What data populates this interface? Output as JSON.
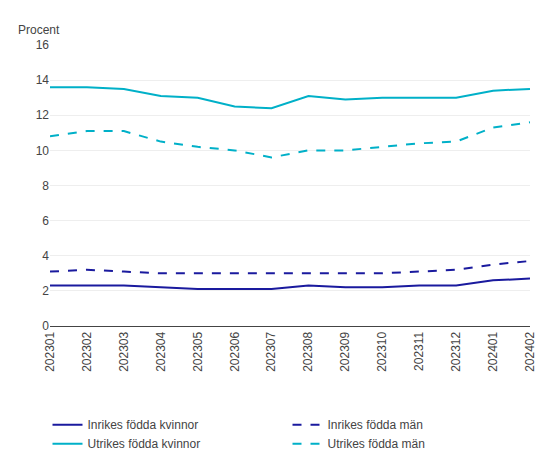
{
  "chart_data": {
    "type": "line",
    "annotations": [
      "Procent"
    ],
    "categories": [
      "202301",
      "202302",
      "202303",
      "202304",
      "202305",
      "202306",
      "202307",
      "202308",
      "202309",
      "202310",
      "202311",
      "202312",
      "202401",
      "202402"
    ],
    "series": [
      {
        "name": "Inrikes födda kvinnor",
        "color": "#1a1a9e",
        "line_style": "solid",
        "values": [
          2.3,
          2.3,
          2.3,
          2.2,
          2.1,
          2.1,
          2.1,
          2.3,
          2.2,
          2.2,
          2.3,
          2.3,
          2.6,
          2.7
        ]
      },
      {
        "name": "Inrikes födda män",
        "color": "#1a1a9e",
        "line_style": "dashed",
        "values": [
          3.1,
          3.2,
          3.1,
          3.0,
          3.0,
          3.0,
          3.0,
          3.0,
          3.0,
          3.0,
          3.1,
          3.2,
          3.5,
          3.7
        ]
      },
      {
        "name": "Utrikes födda kvinnor",
        "color": "#00b0c8",
        "line_style": "solid",
        "values": [
          13.6,
          13.6,
          13.5,
          13.1,
          13.0,
          12.5,
          12.4,
          13.1,
          12.9,
          13.0,
          13.0,
          13.0,
          13.4,
          13.5
        ]
      },
      {
        "name": "Utrikes födda män",
        "color": "#00b0c8",
        "line_style": "dashed",
        "values": [
          10.8,
          11.1,
          11.1,
          10.5,
          10.2,
          10.0,
          9.6,
          10.0,
          10.0,
          10.2,
          10.4,
          10.5,
          11.3,
          11.6
        ]
      }
    ],
    "ylim": [
      0,
      16
    ],
    "yticks": [
      0,
      2,
      4,
      6,
      8,
      10,
      12,
      14,
      16
    ],
    "grid": true,
    "legend": "bottom"
  }
}
